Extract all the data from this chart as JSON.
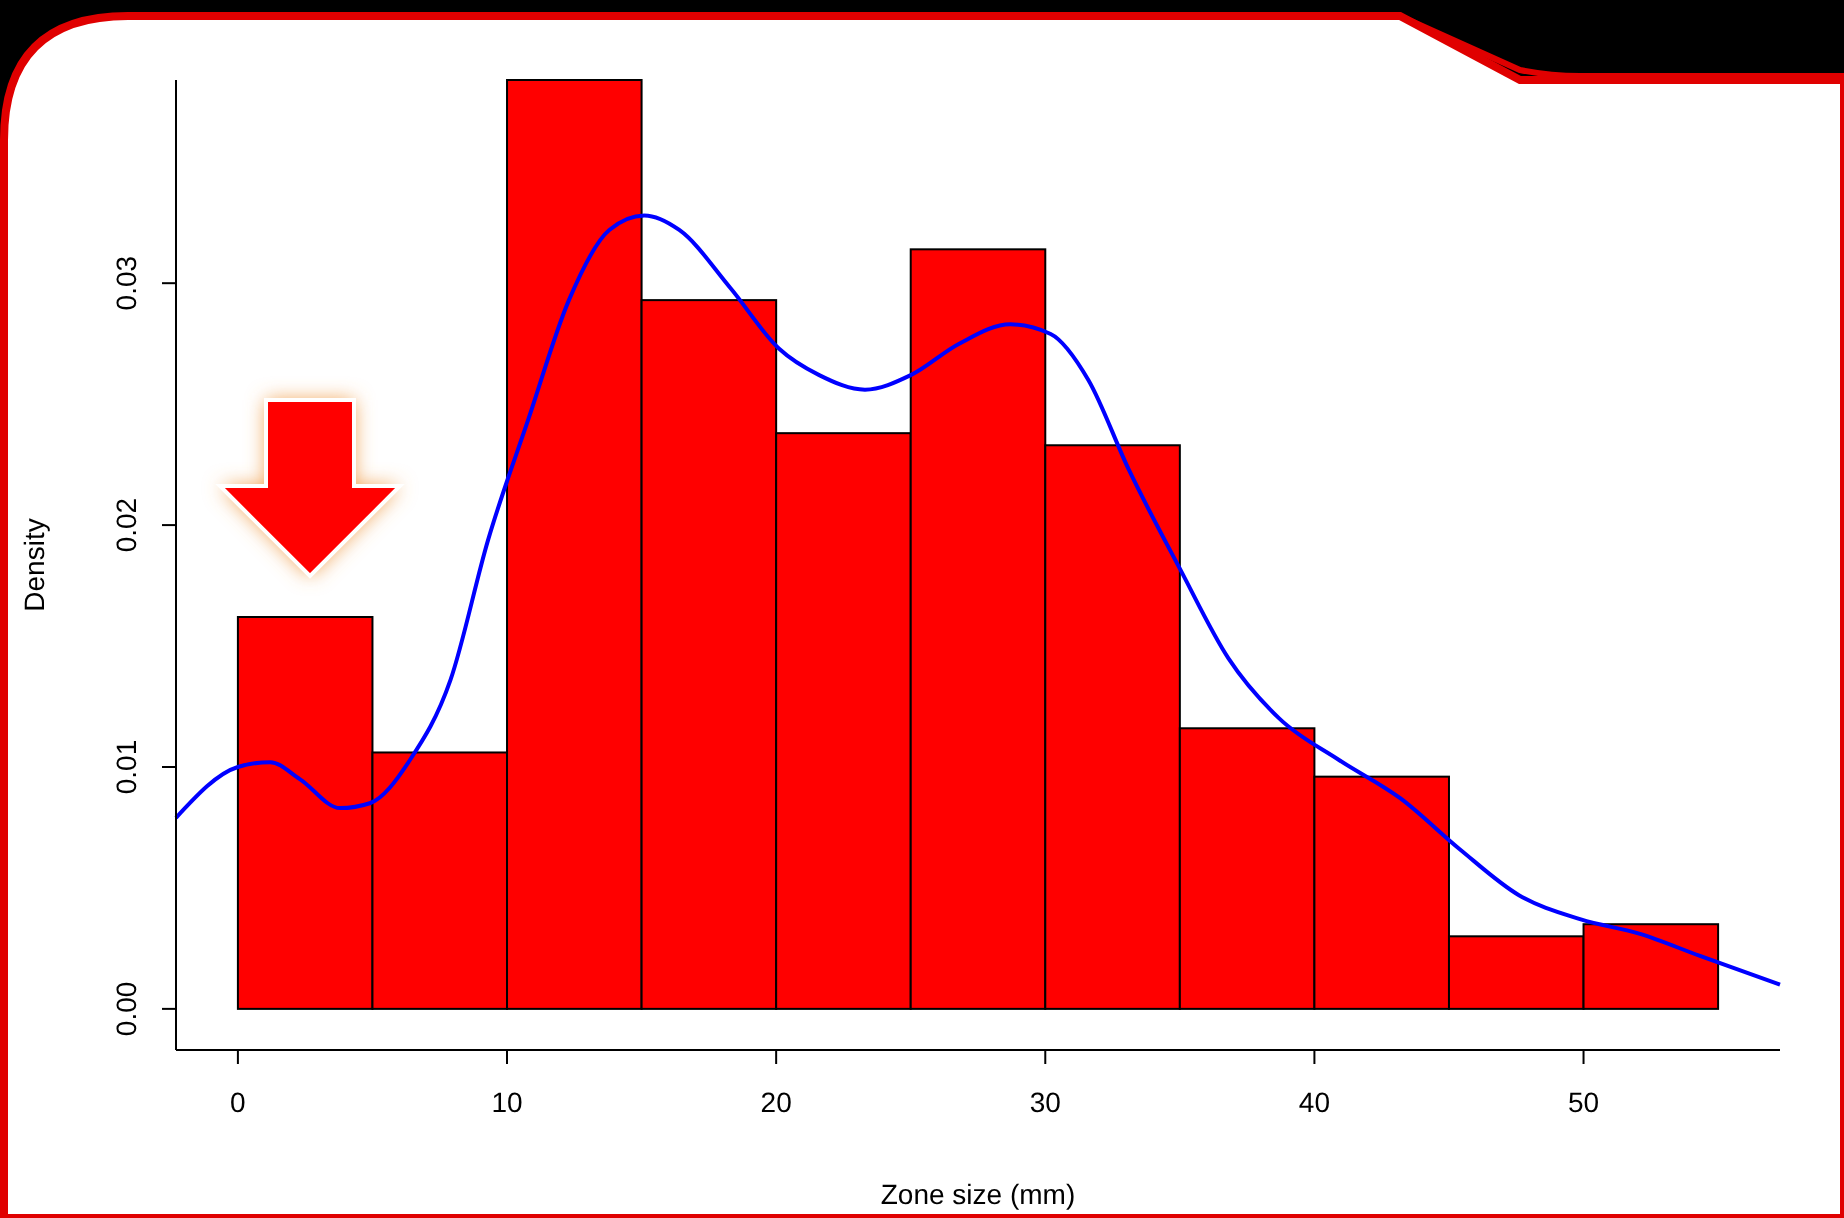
{
  "chart_data": {
    "type": "histogram",
    "xlabel": "Zone size (mm)",
    "ylabel": "Density",
    "bins": [
      0,
      5,
      10,
      15,
      20,
      25,
      30,
      35,
      40,
      45,
      50,
      55
    ],
    "values": [
      0.0162,
      0.0106,
      0.0384,
      0.0293,
      0.0238,
      0.0314,
      0.0233,
      0.0116,
      0.0096,
      0.003,
      0.0035
    ],
    "color": "#ff0000",
    "xlim": [
      -2.3,
      57.3
    ],
    "ylim": [
      -0.0017,
      0.0384
    ],
    "xticks": [
      0,
      10,
      20,
      30,
      40,
      50
    ],
    "yticks": [
      {
        "value": 0,
        "label": "0.00"
      },
      {
        "value": 0.01,
        "label": "0.01"
      },
      {
        "value": 0.02,
        "label": "0.02"
      },
      {
        "value": 0.03,
        "label": "0.03"
      }
    ],
    "grid": false,
    "series": [
      {
        "type": "line",
        "color": "#0000ff",
        "x": [
          -2.3,
          0,
          1.2,
          2.3,
          3.8,
          4.9,
          6.4,
          7.9,
          9.3,
          10.8,
          12.3,
          13.8,
          15.1,
          16.4,
          18.3,
          20.1,
          21.6,
          23.3,
          25,
          26.8,
          28.7,
          30.2,
          31.6,
          33.1,
          35,
          36.8,
          38.7,
          40.9,
          43.2,
          45.4,
          47.6,
          49.9,
          52.1,
          54.3,
          57.3
        ],
        "values": [
          0.0079,
          0.01,
          0.0102,
          0.0095,
          0.0083,
          0.0085,
          0.0103,
          0.0136,
          0.0194,
          0.0244,
          0.0293,
          0.0322,
          0.0328,
          0.0322,
          0.0298,
          0.0273,
          0.0262,
          0.0256,
          0.0262,
          0.0275,
          0.0283,
          0.0279,
          0.026,
          0.0223,
          0.0182,
          0.0145,
          0.012,
          0.0103,
          0.0087,
          0.0066,
          0.0047,
          0.0037,
          0.0031,
          0.0022,
          0.001
        ]
      }
    ]
  }
}
